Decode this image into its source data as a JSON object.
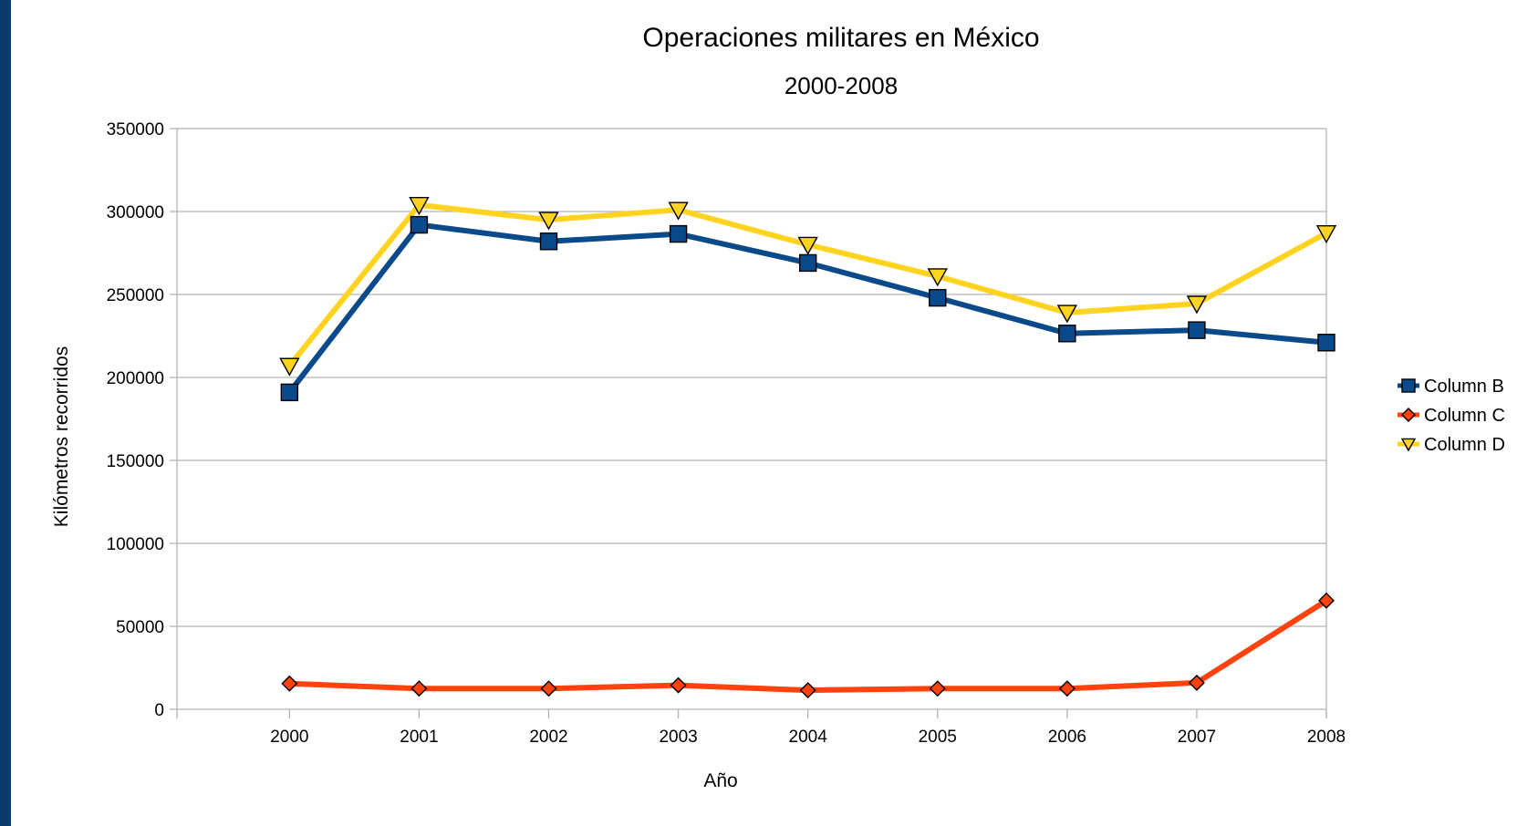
{
  "chart_data": {
    "type": "line",
    "title": "Operaciones militares en México",
    "subtitle": "2000-2008",
    "xlabel": "Año",
    "ylabel": "Kilómetros recorridos",
    "categories": [
      "2000",
      "2001",
      "2002",
      "2003",
      "2004",
      "2005",
      "2006",
      "2007",
      "2008"
    ],
    "ylim": [
      0,
      350000
    ],
    "yticks": [
      0,
      50000,
      100000,
      150000,
      200000,
      250000,
      300000,
      350000
    ],
    "ytick_labels": [
      "0",
      "50000",
      "100000",
      "150000",
      "200000",
      "250000",
      "300000",
      "350000"
    ],
    "grid": true,
    "legend_position": "right",
    "series": [
      {
        "name": "Column B",
        "color": "#0b4a8a",
        "marker": "square",
        "values": [
          191000,
          292000,
          282000,
          286500,
          269000,
          248000,
          226500,
          228500,
          221000
        ]
      },
      {
        "name": "Column C",
        "color": "#ff420e",
        "marker": "diamond",
        "values": [
          15500,
          12500,
          12500,
          14500,
          11500,
          12500,
          12500,
          16000,
          65500
        ]
      },
      {
        "name": "Column D",
        "color": "#ffd320",
        "marker": "triangle-down",
        "values": [
          207000,
          304000,
          295000,
          301000,
          280000,
          261000,
          239000,
          244500,
          287000
        ]
      }
    ]
  }
}
